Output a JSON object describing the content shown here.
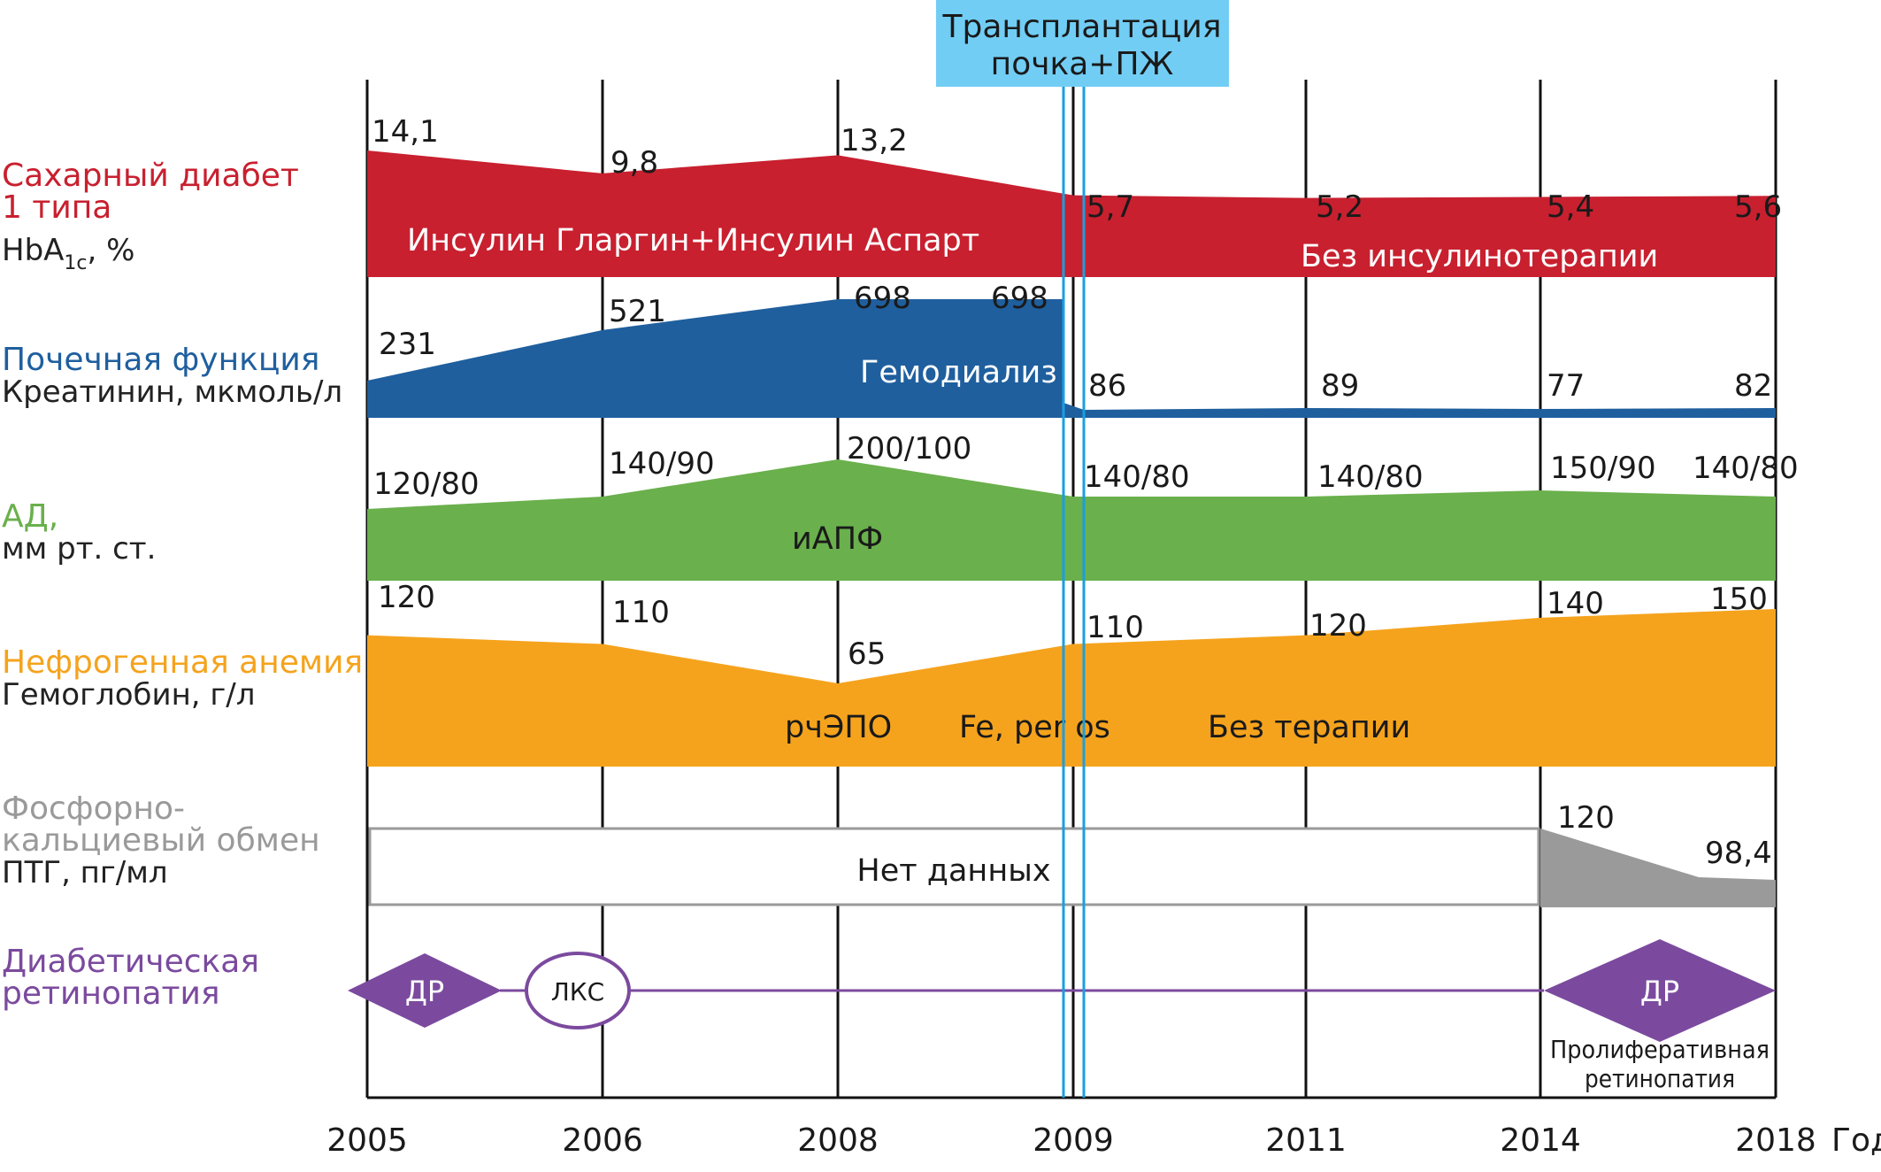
{
  "chart_data": {
    "type": "area",
    "title": "",
    "x_axis": {
      "label": "Год",
      "ticks": [
        "2005",
        "2006",
        "2008",
        "2009",
        "2011",
        "2014",
        "2018"
      ]
    },
    "event": {
      "label_line1": "Трансплантация",
      "label_line2": "почка+ПЖ",
      "year": "2009",
      "color": "#71cdf4"
    },
    "rows": [
      {
        "id": "diabetes",
        "title_lines": [
          "Сахарный диабет",
          "1 типа"
        ],
        "sub_main": "HbA",
        "sub_index": "1c",
        "sub_tail": ", %",
        "color": "#c8202f",
        "points": [
          {
            "tick": "2005",
            "value": 14.1,
            "label": "14,1"
          },
          {
            "tick": "2006",
            "value": 9.8,
            "label": "9,8"
          },
          {
            "tick": "2008",
            "value": 13.2,
            "label": "13,2"
          },
          {
            "tick": "2009",
            "value": 5.7,
            "label": "5,7"
          },
          {
            "tick": "2011",
            "value": 5.2,
            "label": "5,2"
          },
          {
            "tick": "2014",
            "value": 5.4,
            "label": "5,4"
          },
          {
            "tick": "2018",
            "value": 5.6,
            "label": "5,6"
          }
        ],
        "therapy": [
          "Инсулин Гларгин+Инсулин Аспарт",
          "Без инсулинотерапии"
        ]
      },
      {
        "id": "renal",
        "title_lines": [
          "Почечная функция"
        ],
        "sub": "Креатинин, мкмоль/л",
        "color": "#1f5f9e",
        "points": [
          {
            "tick": "2005",
            "value": 231,
            "label": "231"
          },
          {
            "tick": "2006",
            "value": 521,
            "label": "521"
          },
          {
            "tick": "2008",
            "value": 698,
            "label": "698"
          },
          {
            "tick": "2009",
            "value": 698,
            "label": "698"
          },
          {
            "tick": "2009",
            "value": 86,
            "label": "86"
          },
          {
            "tick": "2011",
            "value": 89,
            "label": "89"
          },
          {
            "tick": "2014",
            "value": 77,
            "label": "77"
          },
          {
            "tick": "2018",
            "value": 82,
            "label": "82"
          }
        ],
        "therapy": [
          "Гемодиализ"
        ]
      },
      {
        "id": "bp",
        "title_lines": [
          "АД,"
        ],
        "sub": "мм рт. ст.",
        "color": "#6ab04c",
        "points": [
          {
            "tick": "2005",
            "value": 120,
            "label": "120/80"
          },
          {
            "tick": "2006",
            "value": 140,
            "label": "140/90"
          },
          {
            "tick": "2008",
            "value": 200,
            "label": "200/100"
          },
          {
            "tick": "2009",
            "value": 140,
            "label": "140/80"
          },
          {
            "tick": "2011",
            "value": 140,
            "label": "140/80"
          },
          {
            "tick": "2014",
            "value": 150,
            "label": "150/90"
          },
          {
            "tick": "2018",
            "value": 140,
            "label": "140/80"
          }
        ],
        "therapy": [
          "иАПФ"
        ]
      },
      {
        "id": "anemia",
        "title_lines": [
          "Нефрогенная анемия"
        ],
        "sub": "Гемоглобин, г/л",
        "color": "#f5a31d",
        "points": [
          {
            "tick": "2005",
            "value": 120,
            "label": "120"
          },
          {
            "tick": "2006",
            "value": 110,
            "label": "110"
          },
          {
            "tick": "2008",
            "value": 65,
            "label": "65"
          },
          {
            "tick": "2009",
            "value": 110,
            "label": "110"
          },
          {
            "tick": "2011",
            "value": 120,
            "label": "120"
          },
          {
            "tick": "2014",
            "value": 140,
            "label": "140"
          },
          {
            "tick": "2018",
            "value": 150,
            "label": "150"
          }
        ],
        "therapy": [
          "рчЭПО",
          "Fe, per os",
          "Без терапии"
        ]
      },
      {
        "id": "pth",
        "title_lines": [
          "Фосфорно-",
          "кальциевый обмен"
        ],
        "sub": "ПТГ, пг/мл",
        "color": "#9a9a9a",
        "no_data_label": "Нет данных",
        "points": [
          {
            "tick": "2014",
            "value": 120,
            "label": "120"
          },
          {
            "tick": "2018",
            "value": 98.4,
            "label": "98,4"
          }
        ]
      },
      {
        "id": "retinopathy",
        "title_lines": [
          "Диабетическая",
          "ретинопатия"
        ],
        "color": "#7b4a9e",
        "markers": [
          {
            "label": "ДР",
            "shape": "diamond"
          },
          {
            "label": "ЛКС",
            "shape": "ellipse"
          },
          {
            "label": "ДР",
            "shape": "diamond"
          }
        ],
        "note_lines": [
          "Пролиферативная",
          "ретинопатия"
        ]
      }
    ]
  }
}
